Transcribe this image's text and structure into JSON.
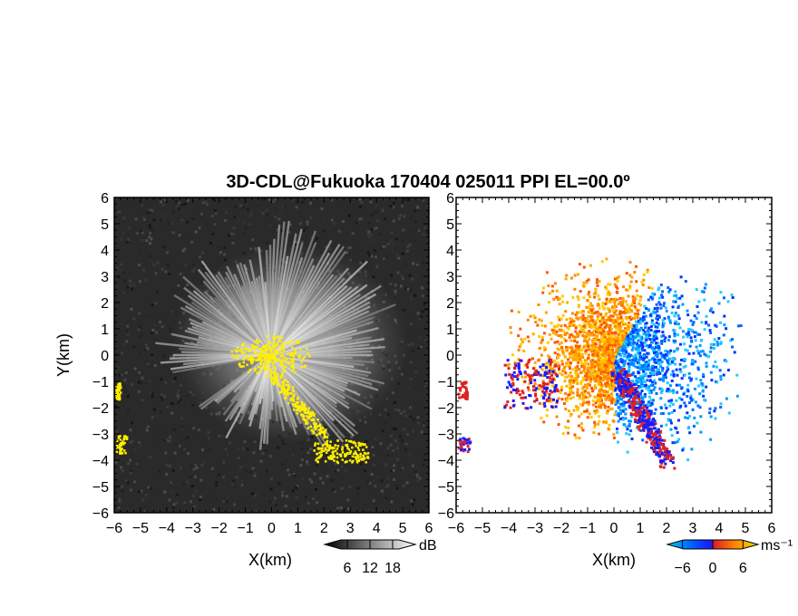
{
  "chart_data": [
    {
      "type": "heatmap",
      "panel": "reflectivity / SNR",
      "title": "3D-CDL@Fukuoka 170404 025011 PPI EL=00.0º",
      "xlabel": "X(km)",
      "ylabel": "Y(km)",
      "xlim": [
        -6,
        6
      ],
      "ylim": [
        -6,
        6
      ],
      "x_ticks": [
        "−6",
        "−5",
        "−4",
        "−3",
        "−2",
        "−1",
        "0",
        "1",
        "2",
        "3",
        "4",
        "5",
        "6"
      ],
      "y_ticks": [
        "6",
        "5",
        "4",
        "3",
        "2",
        "1",
        "0",
        "−1",
        "−2",
        "−3",
        "−4",
        "−5",
        "−6"
      ],
      "colorbar": {
        "unit": "dB",
        "ticks": [
          6,
          12,
          18
        ],
        "tick_labels": [
          "6",
          "12",
          "18"
        ],
        "range": [
          0,
          24
        ],
        "colors": [
          "#000000",
          "#ffffff"
        ]
      },
      "highlight_color": "#ffee00",
      "background_color": "#2a2a2a"
    },
    {
      "type": "heatmap",
      "panel": "radial velocity",
      "xlabel": "X(km)",
      "xlim": [
        -6,
        6
      ],
      "ylim": [
        -6,
        6
      ],
      "x_ticks": [
        "−6",
        "−5",
        "−4",
        "−3",
        "−2",
        "−1",
        "0",
        "1",
        "2",
        "3",
        "4",
        "5",
        "6"
      ],
      "y_ticks": [
        "6",
        "5",
        "4",
        "3",
        "2",
        "1",
        "0",
        "−1",
        "−2",
        "−3",
        "−4",
        "−5",
        "−6"
      ],
      "colorbar": {
        "unit": "ms⁻¹",
        "ticks": [
          -6,
          0,
          6
        ],
        "tick_labels": [
          "−6",
          "0",
          "6"
        ],
        "range": [
          -9,
          9
        ],
        "colors": [
          "#00ccff",
          "#0055ff",
          "#1a1aff",
          "#dd2222",
          "#ff8800",
          "#ffdd00"
        ]
      }
    }
  ]
}
